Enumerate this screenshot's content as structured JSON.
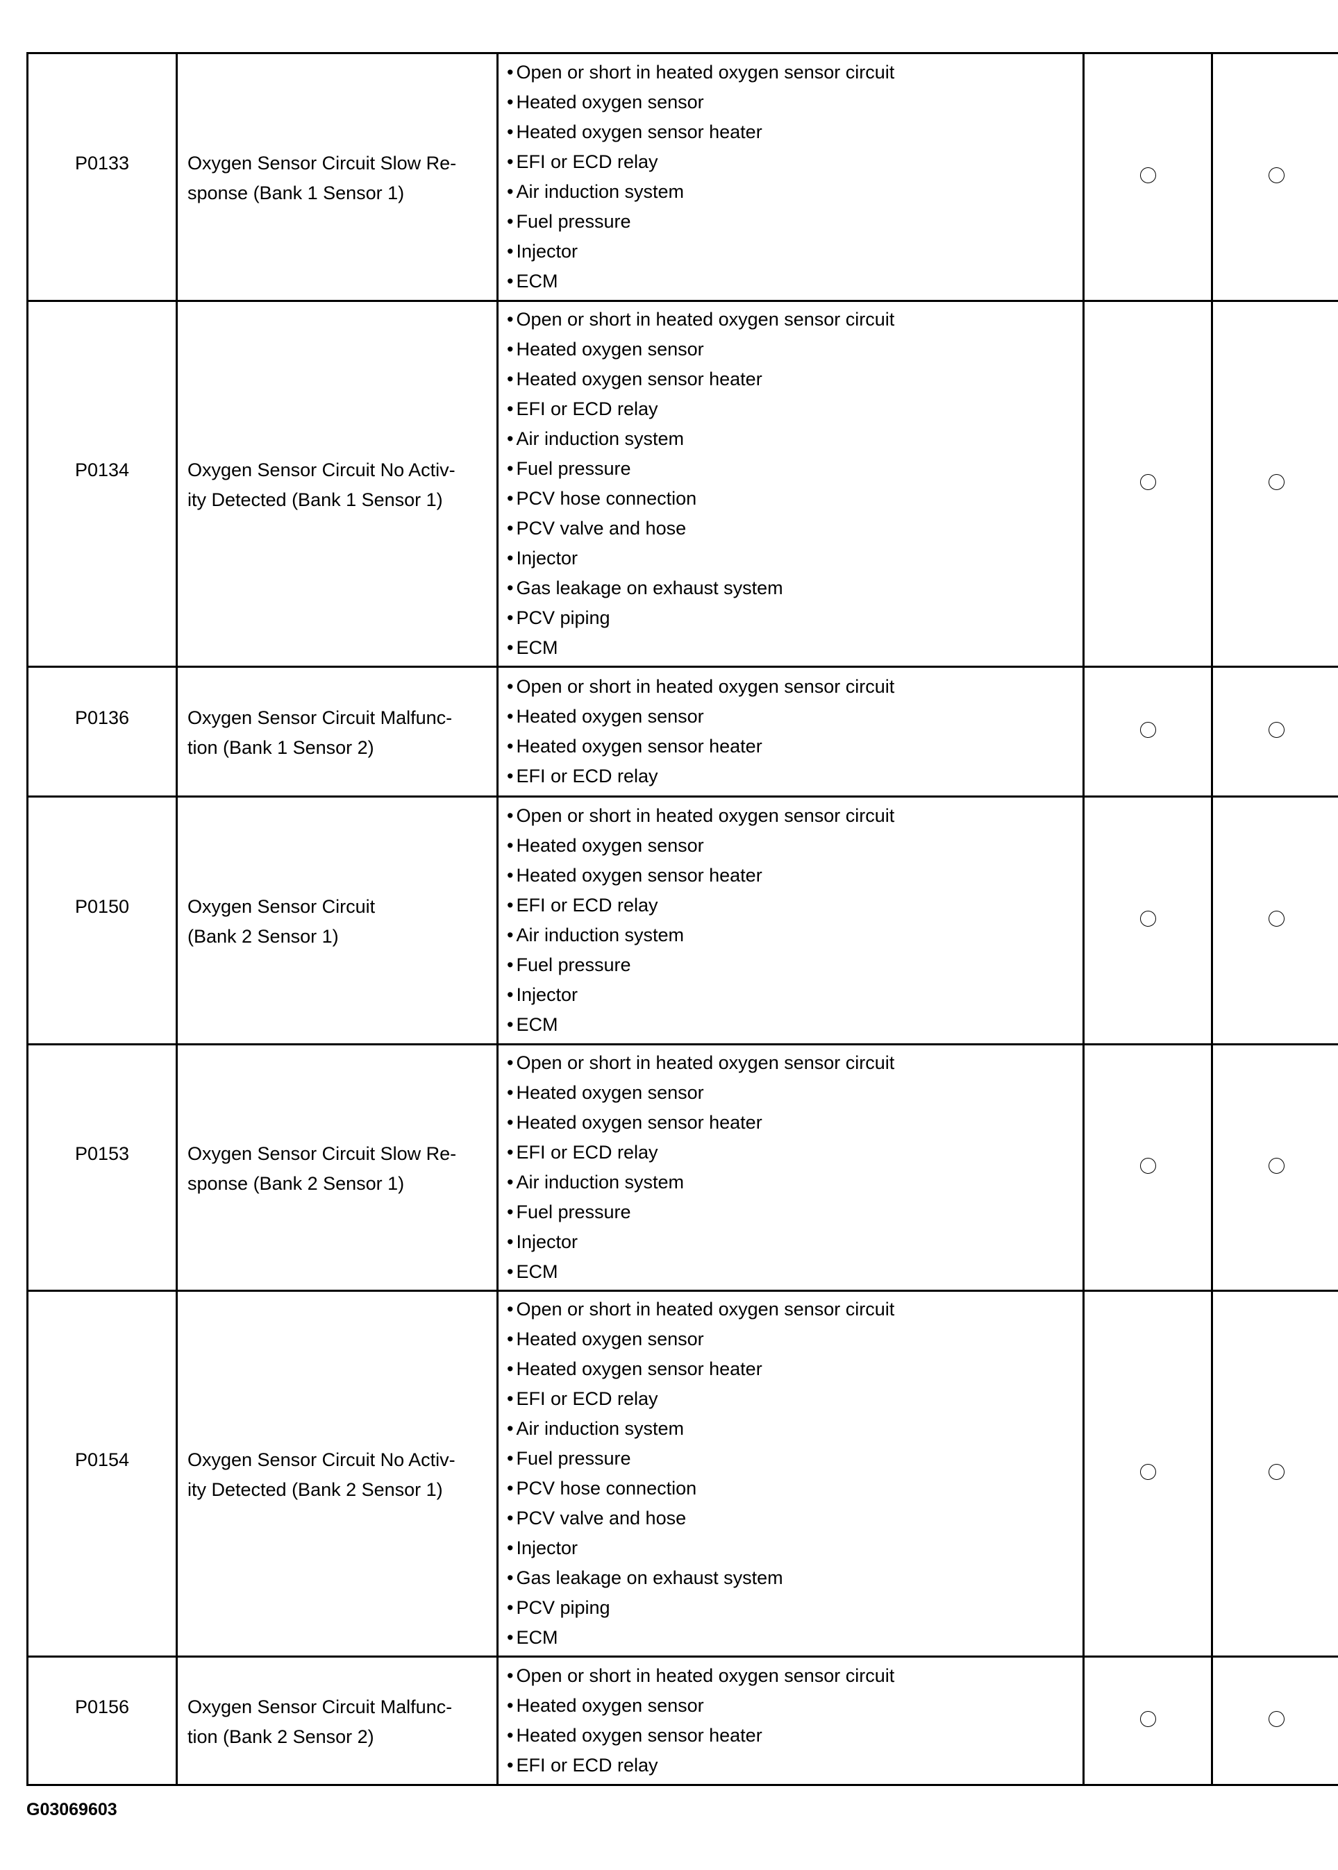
{
  "rows": [
    {
      "code": "P0133",
      "description": [
        "Oxygen Sensor Circuit Slow Re-",
        "sponse (Bank 1 Sensor 1)"
      ],
      "causes": [
        "Open or short in heated oxygen sensor circuit",
        "Heated oxygen sensor",
        "Heated oxygen sensor heater",
        "EFI or ECD relay",
        "Air induction system",
        "Fuel pressure",
        "Injector",
        "ECM"
      ],
      "marks": [
        "circle",
        "circle"
      ]
    },
    {
      "code": "P0134",
      "description": [
        "Oxygen Sensor Circuit No Activ-",
        "ity Detected (Bank 1 Sensor 1)"
      ],
      "causes": [
        "Open or short in heated oxygen sensor circuit",
        "Heated oxygen sensor",
        "Heated oxygen sensor heater",
        "EFI or ECD relay",
        "Air induction system",
        "Fuel pressure",
        "PCV hose connection",
        "PCV valve and hose",
        "Injector",
        "Gas leakage on exhaust system",
        "PCV piping",
        "ECM"
      ],
      "marks": [
        "circle",
        "circle"
      ]
    },
    {
      "code": "P0136",
      "description": [
        "Oxygen Sensor Circuit Malfunc-",
        "tion (Bank 1 Sensor 2)"
      ],
      "causes": [
        "Open or short in heated oxygen sensor circuit",
        "Heated oxygen sensor",
        "Heated oxygen sensor heater",
        "EFI or ECD relay"
      ],
      "marks": [
        "circle",
        "circle"
      ]
    },
    {
      "code": "P0150",
      "description": [
        "Oxygen Sensor Circuit",
        "(Bank 2 Sensor 1)"
      ],
      "causes": [
        "Open or short in heated oxygen sensor circuit",
        "Heated oxygen sensor",
        "Heated oxygen sensor heater",
        "EFI or ECD relay",
        "Air induction system",
        "Fuel pressure",
        "Injector",
        "ECM"
      ],
      "marks": [
        "circle",
        "circle"
      ]
    },
    {
      "code": "P0153",
      "description": [
        "Oxygen Sensor Circuit Slow Re-",
        "sponse (Bank 2 Sensor 1)"
      ],
      "causes": [
        "Open or short in heated oxygen sensor circuit",
        "Heated oxygen sensor",
        "Heated oxygen sensor heater",
        "EFI or ECD relay",
        "Air induction system",
        "Fuel pressure",
        "Injector",
        "ECM"
      ],
      "marks": [
        "circle",
        "circle"
      ]
    },
    {
      "code": "P0154",
      "description": [
        "Oxygen Sensor Circuit No Activ-",
        "ity Detected (Bank 2 Sensor 1)"
      ],
      "causes": [
        "Open or short in heated oxygen sensor circuit",
        "Heated oxygen sensor",
        "Heated oxygen sensor heater",
        "EFI or ECD relay",
        "Air induction system",
        "Fuel pressure",
        "PCV hose connection",
        "PCV valve and hose",
        "Injector",
        "Gas leakage on exhaust system",
        "PCV piping",
        "ECM"
      ],
      "marks": [
        "circle",
        "circle"
      ]
    },
    {
      "code": "P0156",
      "description": [
        "Oxygen Sensor Circuit Malfunc-",
        "tion (Bank 2 Sensor 2)"
      ],
      "causes": [
        "Open or short in heated oxygen sensor circuit",
        "Heated oxygen sensor",
        "Heated oxygen sensor heater",
        "EFI or ECD relay"
      ],
      "marks": [
        "circle",
        "circle"
      ]
    }
  ],
  "figure_id": "G03069603"
}
